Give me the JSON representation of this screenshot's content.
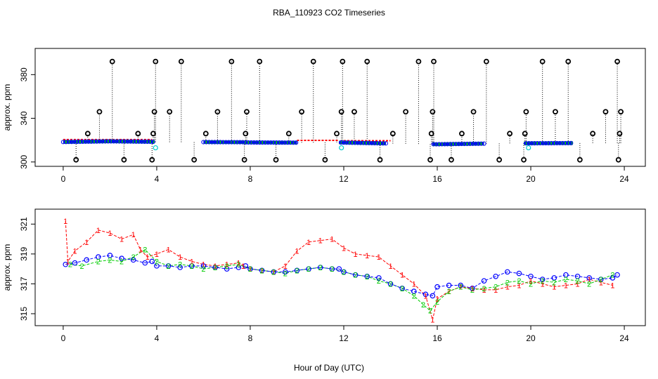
{
  "title": "RBA_110923  CO2 Timeseries",
  "xlabel": "Hour of Day (UTC)",
  "colors": {
    "series1": "#ff0000",
    "series2": "#00cc00",
    "series3": "#0000ff",
    "flag": "#00cccc",
    "outlier": "#000000"
  },
  "chart_data": [
    {
      "type": "scatter",
      "panel": "top",
      "ylabel": "approx. ppm",
      "xlim": [
        -1.2,
        24.9
      ],
      "ylim": [
        296,
        404
      ],
      "xticks": [
        0,
        4,
        8,
        12,
        16,
        20,
        24
      ],
      "yticks": [
        300,
        340,
        380
      ],
      "yticklabels": [
        "300",
        "340",
        "380"
      ],
      "baseline": {
        "x": [
          0.0,
          2.0,
          3.8,
          3.9,
          6.0,
          7.7,
          7.8,
          10.0,
          11.8,
          11.9,
          13.8,
          15.8,
          15.9,
          18.0,
          19.7,
          19.8,
          21.8,
          23.7
        ],
        "ppm": [
          318.3,
          318.9,
          318.5,
          318.2,
          318.2,
          318.1,
          317.9,
          317.7,
          318.0,
          317.8,
          317.0,
          316.3,
          316.2,
          316.8,
          317.2,
          317.1,
          317.3,
          317.4
        ],
        "gaps_after": [
          3,
          7,
          10,
          13,
          16
        ]
      },
      "red_bump_segments": [
        [
          0.0,
          3.8,
          320.5
        ],
        [
          10.0,
          11.8,
          319.8
        ],
        [
          12.0,
          14.0,
          319.5
        ]
      ],
      "cyan_points": {
        "x": [
          3.95,
          11.9,
          19.9
        ],
        "ppm": [
          313,
          313,
          313
        ]
      },
      "outliers": {
        "x": [
          0.55,
          1.05,
          1.55,
          2.1,
          2.6,
          3.2,
          3.8,
          3.85,
          3.9,
          3.95,
          4.55,
          5.05,
          5.6,
          6.1,
          6.6,
          7.2,
          7.75,
          7.8,
          7.85,
          8.4,
          9.1,
          9.65,
          10.2,
          10.7,
          11.2,
          11.7,
          11.9,
          11.95,
          12.45,
          13.0,
          13.55,
          14.1,
          14.65,
          15.2,
          15.7,
          15.75,
          15.8,
          15.85,
          16.6,
          17.05,
          17.55,
          18.1,
          18.65,
          19.1,
          19.7,
          19.75,
          19.8,
          20.5,
          21.05,
          21.6,
          22.1,
          22.65,
          23.2,
          23.7,
          23.75,
          23.8,
          23.85
        ],
        "ppm": [
          302,
          326,
          346,
          392,
          302,
          326,
          302,
          326,
          346,
          392,
          346,
          392,
          302,
          326,
          346,
          392,
          302,
          326,
          346,
          392,
          302,
          326,
          346,
          392,
          302,
          326,
          346,
          392,
          346,
          392,
          302,
          326,
          346,
          392,
          302,
          326,
          346,
          392,
          302,
          326,
          346,
          392,
          302,
          326,
          302,
          326,
          346,
          392,
          346,
          392,
          302,
          326,
          346,
          392,
          302,
          326,
          346
        ]
      }
    },
    {
      "type": "line",
      "panel": "bottom",
      "ylabel": "approx. ppm",
      "xlim": [
        -1.2,
        24.9
      ],
      "ylim": [
        314.2,
        322.0
      ],
      "xticks": [
        0,
        4,
        8,
        12,
        16,
        20,
        24
      ],
      "yticks": [
        315,
        317,
        319,
        321
      ],
      "yticklabels": [
        "315",
        "317",
        "319",
        "321"
      ],
      "series": [
        {
          "name": "1",
          "x": [
            0.1,
            0.2,
            0.5,
            1.0,
            1.5,
            2.0,
            2.5,
            3.0,
            3.3,
            3.6,
            4.0,
            4.5,
            5.0,
            5.5,
            6.0,
            6.5,
            7.0,
            7.5,
            7.7,
            8.0,
            8.5,
            9.0,
            9.5,
            10.0,
            10.5,
            11.0,
            11.5,
            12.0,
            12.5,
            13.0,
            13.5,
            14.0,
            14.5,
            15.0,
            15.5,
            15.8,
            16.0,
            16.5,
            17.0,
            17.5,
            18.0,
            18.5,
            19.0,
            19.5,
            20.0,
            20.5,
            21.0,
            21.5,
            22.0,
            22.5,
            23.0,
            23.5
          ],
          "ppm": [
            321.2,
            318.5,
            319.2,
            319.8,
            320.6,
            320.4,
            320.0,
            320.3,
            319.3,
            318.8,
            319.0,
            319.3,
            318.8,
            318.5,
            318.3,
            318.2,
            318.3,
            318.4,
            318.2,
            318.0,
            317.9,
            317.8,
            318.2,
            319.2,
            319.8,
            319.9,
            320.0,
            319.4,
            319.0,
            318.9,
            318.8,
            318.2,
            317.6,
            317.0,
            316.2,
            314.6,
            316.0,
            316.5,
            316.8,
            316.7,
            316.6,
            316.6,
            316.8,
            316.9,
            317.2,
            317.0,
            316.8,
            316.9,
            317.0,
            317.3,
            317.1,
            316.9
          ]
        },
        {
          "name": "2",
          "x": [
            0.3,
            0.8,
            1.5,
            2.0,
            2.5,
            3.0,
            3.5,
            4.0,
            4.5,
            5.0,
            5.5,
            6.0,
            6.5,
            7.0,
            7.5,
            8.0,
            8.5,
            9.0,
            9.5,
            10.0,
            10.5,
            11.0,
            11.5,
            12.0,
            12.5,
            13.0,
            13.5,
            14.0,
            14.5,
            15.0,
            15.4,
            15.7,
            16.0,
            16.5,
            17.0,
            17.5,
            18.0,
            18.5,
            19.0,
            19.5,
            20.0,
            20.5,
            21.0,
            21.5,
            22.0,
            22.5,
            23.0,
            23.5
          ],
          "ppm": [
            318.3,
            318.2,
            318.5,
            318.6,
            318.5,
            318.8,
            319.3,
            318.5,
            318.2,
            318.3,
            318.2,
            318.0,
            318.1,
            318.2,
            318.3,
            318.0,
            317.9,
            317.8,
            317.7,
            317.9,
            318.0,
            318.1,
            318.0,
            317.8,
            317.6,
            317.5,
            317.2,
            317.0,
            316.7,
            316.2,
            315.6,
            315.2,
            315.8,
            316.5,
            316.8,
            316.6,
            316.7,
            316.8,
            317.1,
            317.2,
            317.0,
            317.2,
            317.1,
            317.3,
            317.2,
            317.0,
            317.3,
            317.6
          ]
        },
        {
          "name": "3",
          "x": [
            0.1,
            0.5,
            1.0,
            1.5,
            2.0,
            2.5,
            3.0,
            3.5,
            3.8,
            4.0,
            4.5,
            5.0,
            5.5,
            6.0,
            6.5,
            7.0,
            7.5,
            7.8,
            8.0,
            8.5,
            9.0,
            9.5,
            10.0,
            10.5,
            11.0,
            11.5,
            11.8,
            12.0,
            12.5,
            13.0,
            13.5,
            14.0,
            14.5,
            15.0,
            15.5,
            15.8,
            16.0,
            16.5,
            17.0,
            17.5,
            18.0,
            18.5,
            19.0,
            19.5,
            20.0,
            20.5,
            21.0,
            21.5,
            22.0,
            22.5,
            23.0,
            23.5,
            23.7
          ],
          "ppm": [
            318.3,
            318.4,
            318.6,
            318.8,
            318.9,
            318.7,
            318.6,
            318.4,
            318.5,
            318.2,
            318.2,
            318.1,
            318.2,
            318.2,
            318.1,
            318.0,
            318.1,
            318.2,
            318.0,
            317.9,
            317.8,
            317.8,
            317.9,
            318.0,
            318.1,
            318.0,
            318.0,
            317.8,
            317.6,
            317.5,
            317.4,
            317.0,
            316.7,
            316.5,
            316.3,
            316.2,
            316.8,
            316.9,
            316.9,
            316.7,
            317.2,
            317.5,
            317.8,
            317.7,
            317.5,
            317.3,
            317.4,
            317.6,
            317.5,
            317.4,
            317.3,
            317.4,
            317.6
          ]
        }
      ]
    }
  ]
}
